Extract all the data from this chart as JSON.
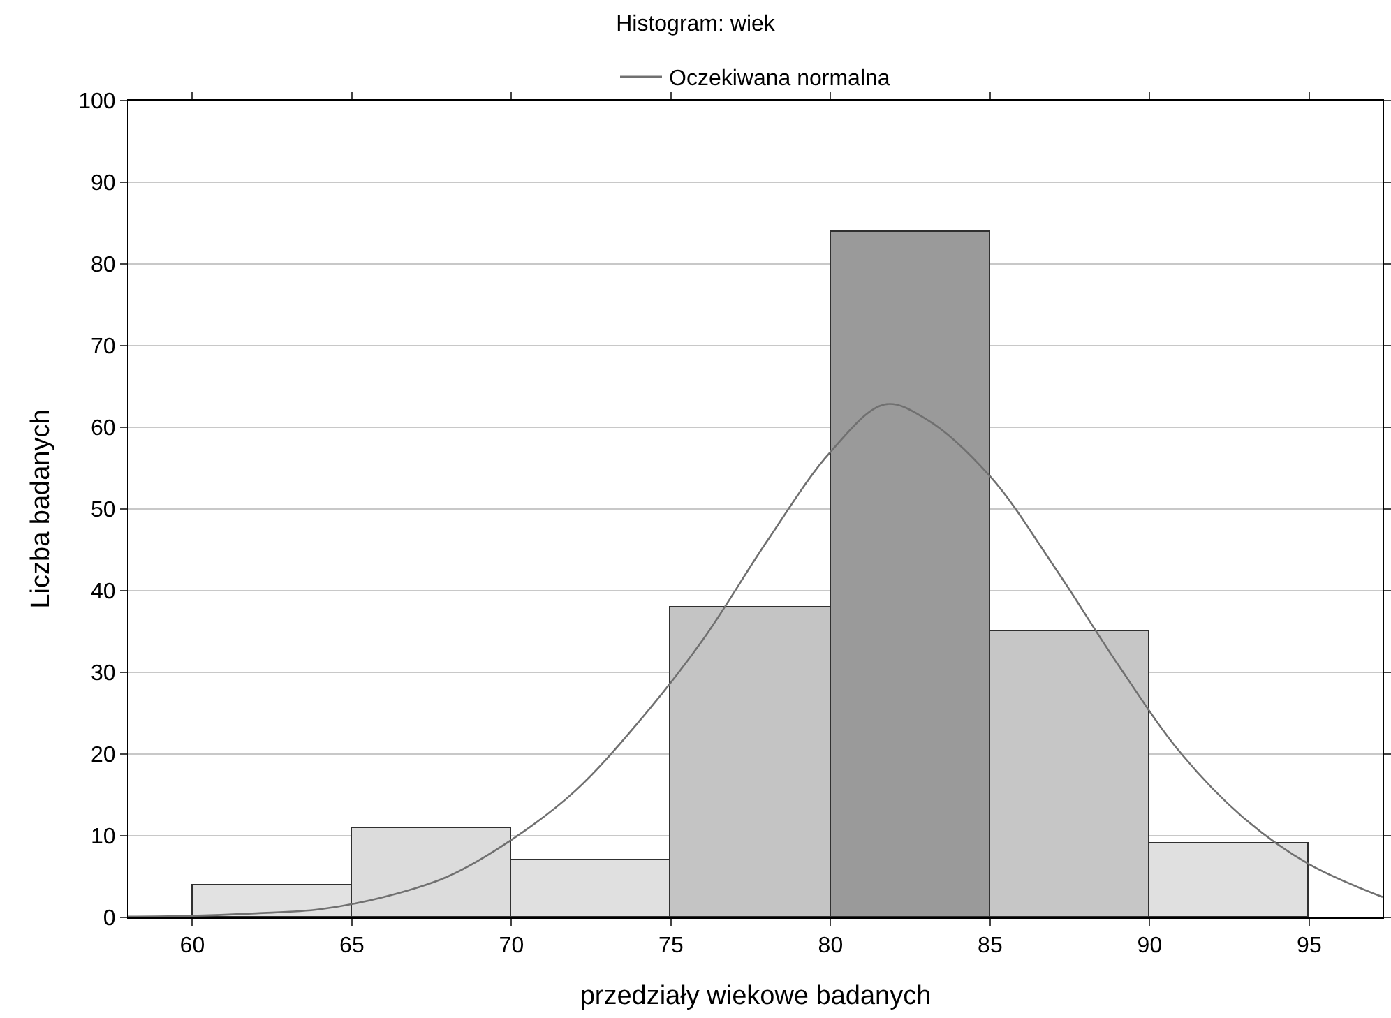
{
  "chart_data": {
    "type": "histogram",
    "title": "Histogram: wiek",
    "xlabel": "przedziały wiekowe badanych",
    "ylabel": "Liczba badanych",
    "bins": [
      60,
      65,
      70,
      75,
      80,
      85,
      90,
      95
    ],
    "values": [
      4,
      11,
      7,
      38,
      84,
      35,
      9
    ],
    "colors": [
      "#e2e2e2",
      "#dcdcdc",
      "#e0e0e0",
      "#c4c4c4",
      "#9a9a9a",
      "#c6c6c6",
      "#e0e0e0"
    ],
    "series": [
      {
        "type": "line",
        "name": "Oczekiwana normalna",
        "color": "#707070",
        "x": [
          58,
          60,
          62,
          64,
          66,
          68,
          70,
          72,
          74,
          76,
          78,
          80,
          81.7,
          83,
          85,
          87,
          89,
          91,
          93,
          95,
          97.3
        ],
        "values": [
          0.1,
          0.2,
          0.5,
          1,
          2.5,
          5,
          9.5,
          15.5,
          24,
          34,
          46,
          57,
          62.8,
          61,
          54,
          43,
          31,
          20,
          12,
          6.5,
          2.5
        ]
      }
    ],
    "xlim": [
      58,
      97.3
    ],
    "xticks": [
      60,
      65,
      70,
      75,
      80,
      85,
      90,
      95
    ],
    "ylim": [
      0,
      100
    ],
    "yticks": [
      0,
      10,
      20,
      30,
      40,
      50,
      60,
      70,
      80,
      90,
      100
    ],
    "grid": "y",
    "legend": "top"
  }
}
